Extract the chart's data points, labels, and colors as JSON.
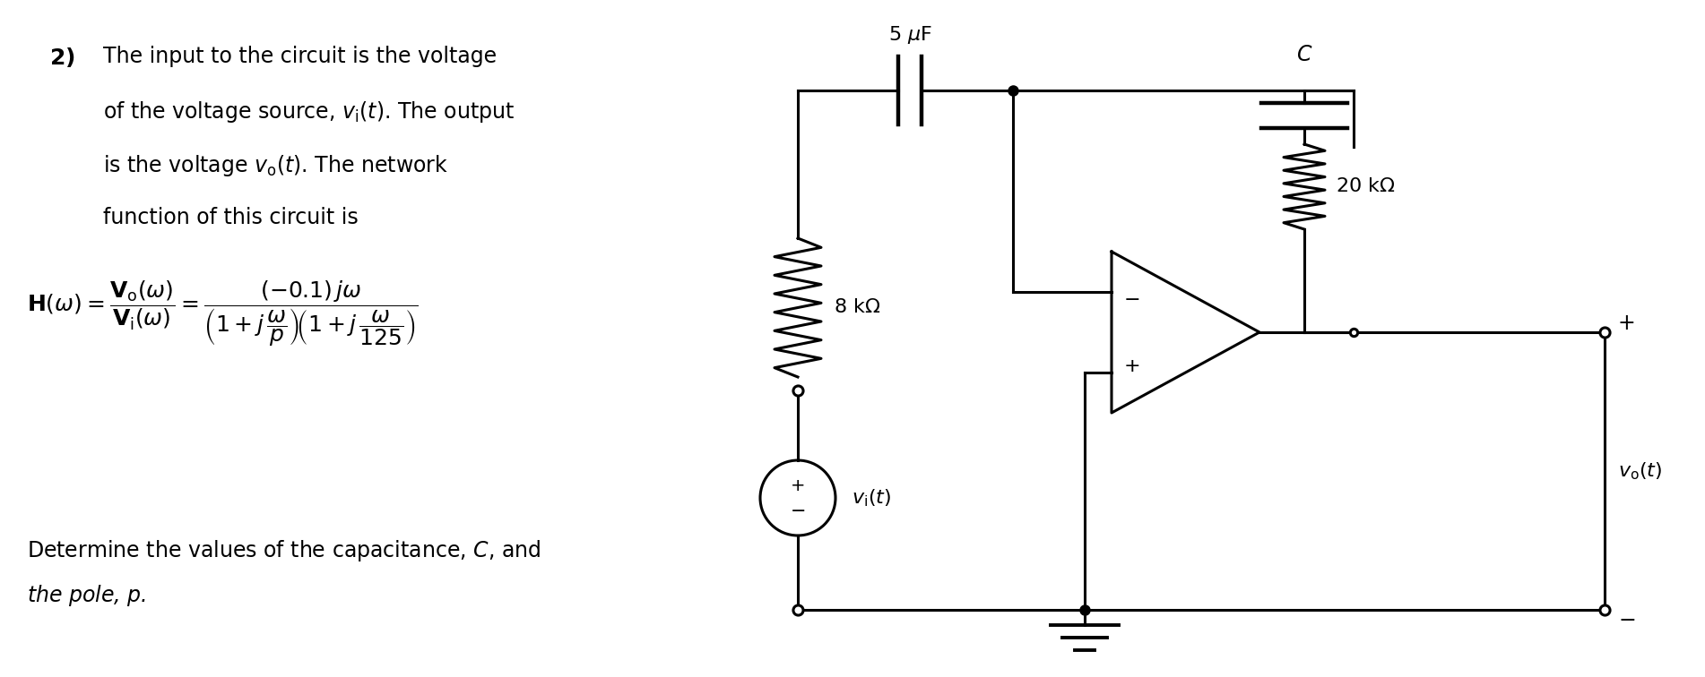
{
  "background_color": "#ffffff",
  "text_color": "#000000",
  "fig_width": 19.02,
  "fig_height": 7.56,
  "dpi": 100
}
